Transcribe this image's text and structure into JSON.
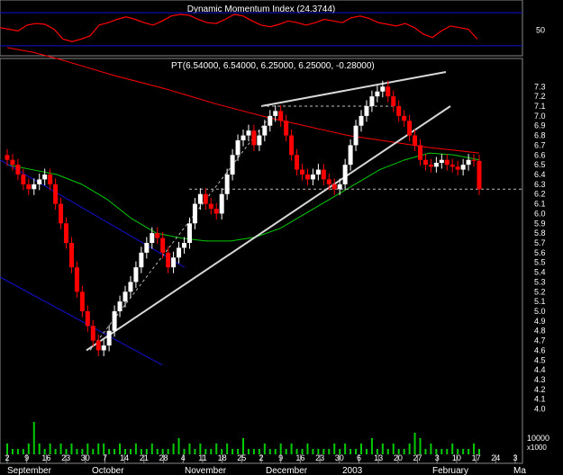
{
  "chart_data": [
    {
      "type": "line",
      "title": "Dynamic Momentum Index (24.3744)",
      "ylim": [
        20,
        80
      ],
      "yticks": [
        50
      ],
      "reference_lines": [
        70,
        30
      ],
      "x": [
        0,
        10,
        20,
        30,
        40,
        50,
        60,
        70,
        80,
        90,
        100,
        110,
        120,
        130,
        140,
        150,
        160,
        170,
        180,
        190,
        200,
        210,
        220,
        230,
        240,
        250,
        260,
        270,
        280,
        290,
        300,
        310,
        320,
        330,
        340,
        350,
        360,
        370,
        380,
        390,
        400,
        410,
        420,
        430,
        440,
        450,
        460,
        470,
        480,
        490,
        500,
        510,
        520,
        530
      ],
      "series": [
        {
          "values": [
            52,
            50,
            48,
            55,
            57,
            56,
            50,
            38,
            35,
            38,
            42,
            55,
            58,
            62,
            65,
            62,
            58,
            55,
            60,
            66,
            68,
            67,
            62,
            58,
            57,
            62,
            68,
            66,
            60,
            55,
            53,
            56,
            60,
            58,
            55,
            58,
            62,
            60,
            58,
            64,
            66,
            63,
            58,
            56,
            54,
            57,
            52,
            44,
            40,
            48,
            54,
            52,
            50,
            38
          ]
        }
      ]
    },
    {
      "type": "candlestick",
      "annotation": "PT(6.54000, 6.54000, 6.25000, 6.25000, -0.28000)",
      "ylim": [
        3.95,
        7.45
      ],
      "yticks": [
        "4.0",
        "4.1",
        "4.2",
        "4.3",
        "4.4",
        "4.5",
        "4.6",
        "4.7",
        "4.8",
        "4.9",
        "5.0",
        "5.1",
        "5.2",
        "5.3",
        "5.4",
        "5.5",
        "5.6",
        "5.7",
        "5.8",
        "5.9",
        "6.0",
        "6.1",
        "6.2",
        "6.3",
        "6.4",
        "6.5",
        "6.6",
        "6.7",
        "6.8",
        "6.9",
        "7.0",
        "7.1",
        "7.2",
        "7.3"
      ],
      "volume_label": "10000",
      "volume_unit": "x1000",
      "date_ticks": [
        "2",
        "9",
        "16",
        "23",
        "30",
        "7",
        "14",
        "21",
        "28",
        "4",
        "11",
        "18",
        "25",
        "2",
        "9",
        "16",
        "23",
        "30",
        "6",
        "13",
        "20",
        "27",
        "3",
        "10",
        "17",
        "24",
        "3"
      ],
      "month_labels": [
        "September",
        "October",
        "November",
        "December",
        "2003",
        "February",
        "Ma"
      ],
      "close": [
        6.55,
        6.5,
        6.4,
        6.3,
        6.25,
        6.3,
        6.35,
        6.4,
        6.3,
        6.1,
        5.9,
        5.7,
        5.45,
        5.2,
        5.0,
        4.85,
        4.7,
        4.6,
        4.65,
        4.8,
        5.0,
        5.1,
        5.2,
        5.3,
        5.45,
        5.6,
        5.7,
        5.8,
        5.75,
        5.6,
        5.45,
        5.55,
        5.65,
        5.7,
        5.9,
        6.1,
        6.2,
        6.1,
        6.05,
        6.0,
        6.2,
        6.4,
        6.6,
        6.75,
        6.8,
        6.85,
        6.7,
        6.8,
        6.9,
        7.0,
        7.05,
        6.95,
        6.8,
        6.6,
        6.45,
        6.4,
        6.35,
        6.4,
        6.45,
        6.35,
        6.3,
        6.25,
        6.3,
        6.5,
        6.7,
        6.9,
        7.0,
        7.1,
        7.2,
        7.25,
        7.3,
        7.2,
        7.1,
        7.0,
        6.95,
        6.8,
        6.7,
        6.55,
        6.5,
        6.48,
        6.52,
        6.55,
        6.5,
        6.48,
        6.45,
        6.5,
        6.55,
        6.54,
        6.25
      ],
      "ma_red": [
        7.7,
        7.65,
        7.58,
        7.5,
        7.42,
        7.35,
        7.28,
        7.2,
        7.12,
        7.05,
        6.98,
        6.92,
        6.86,
        6.8,
        6.76,
        6.72,
        6.68,
        6.65,
        6.62
      ],
      "ma_green": [
        6.5,
        6.45,
        6.4,
        6.3,
        6.15,
        5.95,
        5.8,
        5.75,
        5.72,
        5.72,
        5.76,
        5.85,
        6.0,
        6.15,
        6.3,
        6.45,
        6.55,
        6.62,
        6.6,
        6.55
      ],
      "volume": [
        2,
        1,
        1,
        1,
        2,
        6,
        2,
        1,
        2,
        1,
        2,
        1,
        2,
        1,
        1,
        2,
        1,
        2,
        2,
        1,
        1,
        2,
        1,
        1,
        2,
        1,
        1,
        2,
        1,
        1,
        1,
        2,
        3,
        1,
        2,
        1,
        2,
        1,
        1,
        2,
        1,
        2,
        1,
        1,
        3,
        1,
        1,
        1,
        2,
        1,
        1,
        2,
        1,
        2,
        1,
        1,
        2,
        1,
        1,
        1,
        1,
        2,
        1,
        2,
        1,
        1,
        2,
        1,
        3,
        1,
        2,
        1,
        2,
        1,
        1,
        2,
        4,
        3,
        1,
        2,
        1,
        1,
        1,
        2,
        1,
        1,
        1,
        2,
        1
      ]
    }
  ],
  "colors": {
    "background": "#000000",
    "up_candle": "#ffffff",
    "down_candle": "#ff0000",
    "ma_red": "#ff0000",
    "ma_green": "#00cc00",
    "channel": "#1010d0",
    "trend": "#d8d8d8",
    "ref_line": "#1010d0",
    "volume": "#00cc00",
    "text": "#ffffff"
  }
}
